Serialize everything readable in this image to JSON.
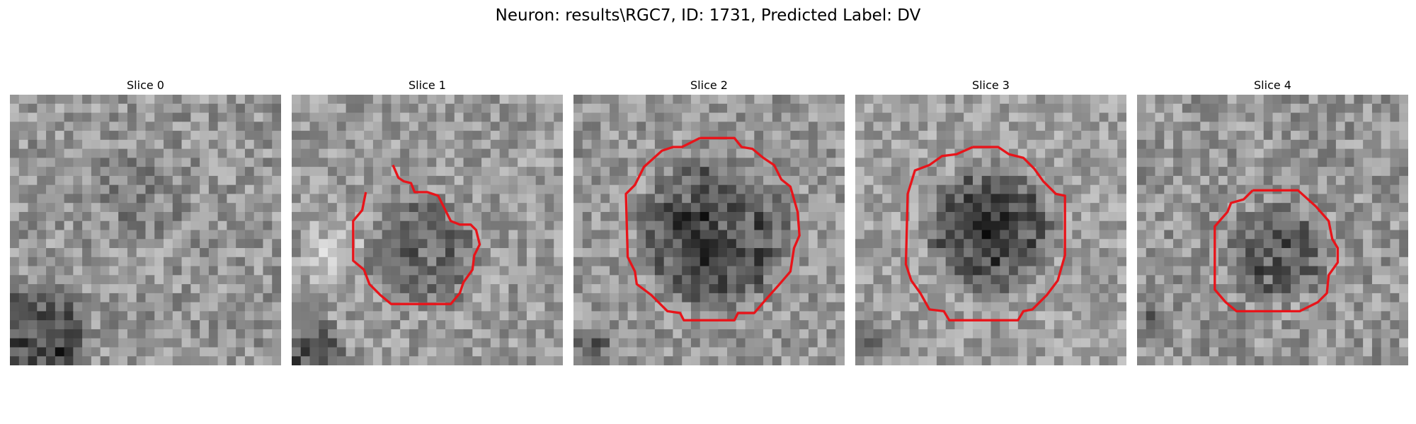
{
  "figure": {
    "title": "Neuron: results\\RGC7, ID: 1731, Predicted Label: DV"
  },
  "panels": [
    {
      "title": "Slice 0",
      "has_outline": false
    },
    {
      "title": "Slice 1",
      "has_outline": true
    },
    {
      "title": "Slice 2",
      "has_outline": true
    },
    {
      "title": "Slice 3",
      "has_outline": true
    },
    {
      "title": "Slice 4",
      "has_outline": true
    }
  ],
  "colors": {
    "outline": "#e8141a",
    "background": "#ffffff"
  }
}
